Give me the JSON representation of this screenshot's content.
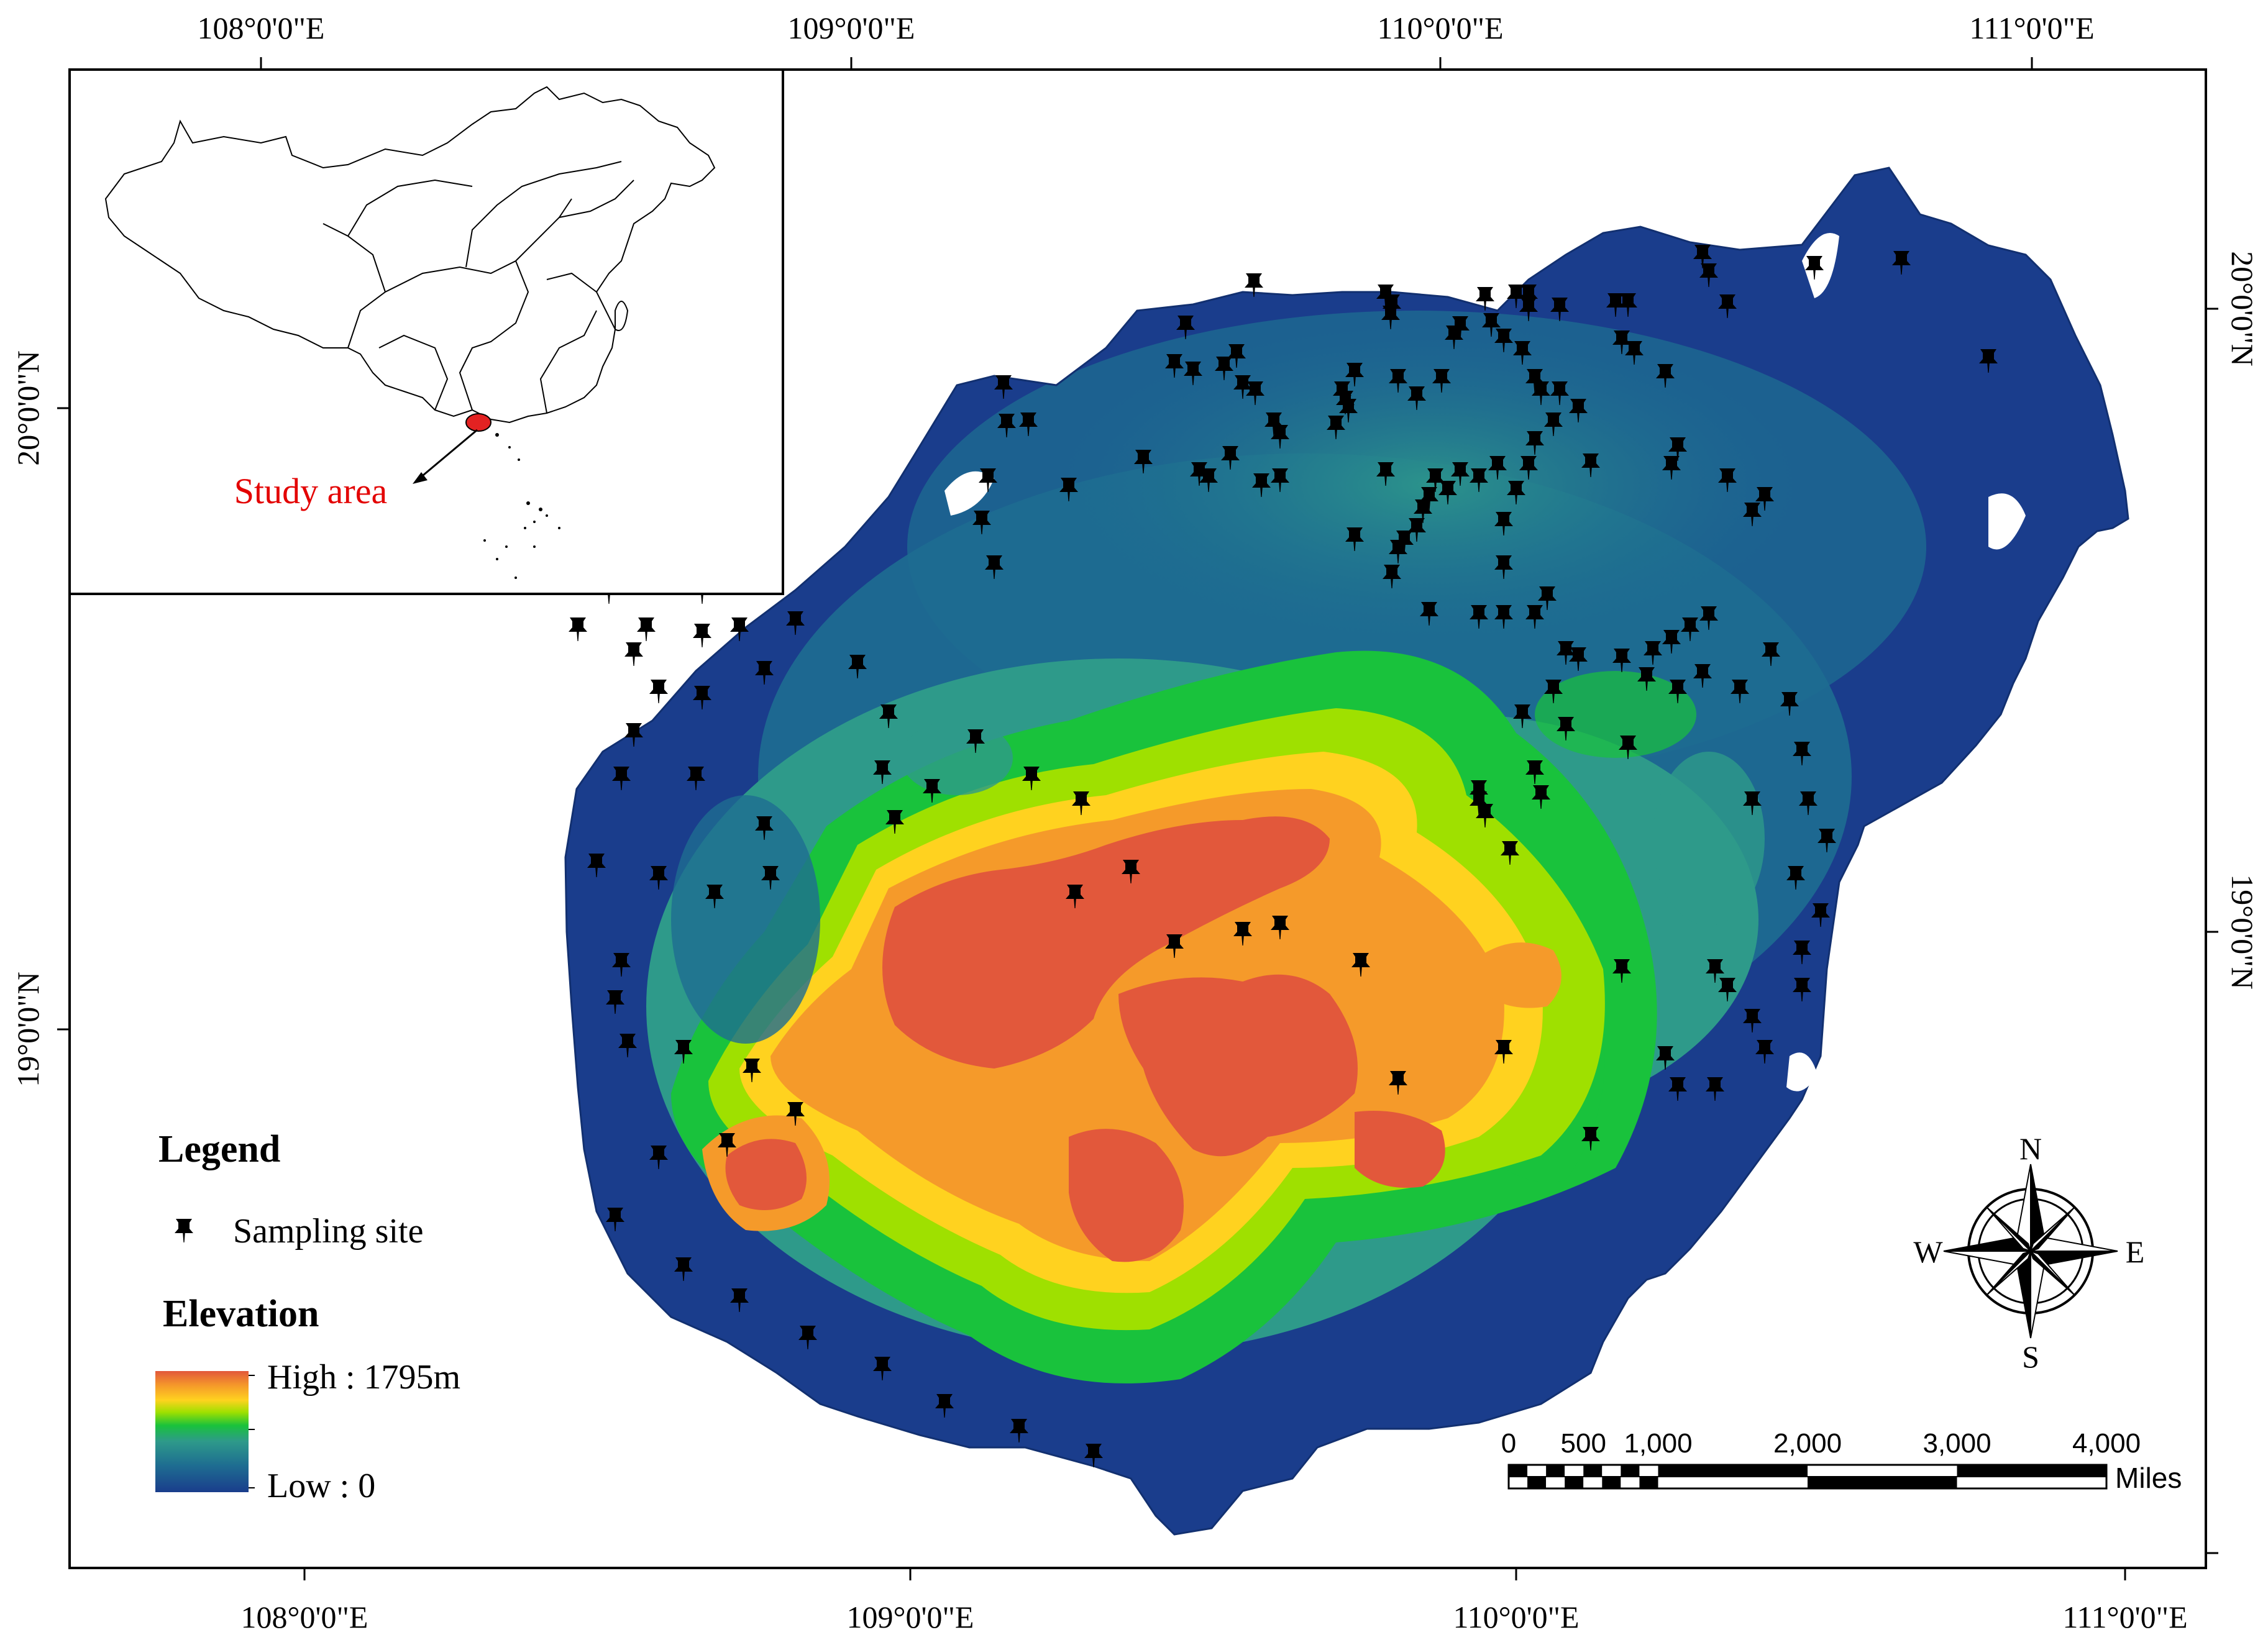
{
  "graticule": {
    "top_labels": [
      "108°0'0\"E",
      "109°0'0\"E",
      "110°0'0\"E",
      "111°0'0\"E"
    ],
    "bottom_labels": [
      "108°0'0\"E",
      "109°0'0\"E",
      "110°0'0\"E",
      "111°0'0\"E"
    ],
    "left_labels": [
      "20°0'0\"N",
      "19°0'0\"N"
    ],
    "right_labels": [
      "20°0'0\"N",
      "19°0'0\"N"
    ]
  },
  "inset": {
    "label": "Study area"
  },
  "legend": {
    "title": "Legend",
    "sampling_label": "Sampling site",
    "elevation_title": "Elevation",
    "high_label": "High : 1795m",
    "low_label": "Low : 0"
  },
  "elevation_colors": [
    "#1a3d8c",
    "#1e6d91",
    "#2e9a8a",
    "#19c23c",
    "#9fe000",
    "#ffd21f",
    "#f59a2a",
    "#e2583b"
  ],
  "compass": {
    "n": "N",
    "s": "S",
    "e": "E",
    "w": "W"
  },
  "scale_bar": {
    "ticks": [
      "0",
      "500",
      "1,000",
      "2,000",
      "3,000",
      "4,000"
    ],
    "tick_values": [
      0,
      500,
      1000,
      2000,
      3000,
      4000
    ],
    "units": "Miles"
  },
  "icons": {
    "pin": "pushpin-icon",
    "compass": "compass-rose-icon"
  }
}
